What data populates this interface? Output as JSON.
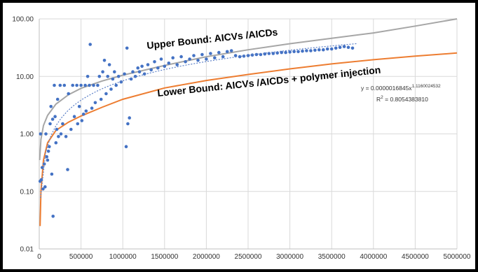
{
  "chart_data": {
    "type": "scatter",
    "title": "",
    "xlabel": "",
    "ylabel": "",
    "x_scale": "linear",
    "y_scale": "log",
    "xlim": [
      0,
      5000000
    ],
    "ylim": [
      0.01,
      100
    ],
    "grid": true,
    "x_ticks": [
      "0",
      "500000",
      "1000000",
      "1500000",
      "2000000",
      "2500000",
      "3000000",
      "3500000",
      "4000000",
      "4500000",
      "5000000"
    ],
    "y_ticks": [
      "0.01",
      "0.10",
      "1.00",
      "10.00",
      "100.00"
    ],
    "colors": {
      "points": "#4472c4",
      "trendline": "#5b7fc7",
      "upper_bound": "#a6a6a6",
      "lower_bound": "#ed7d31",
      "grid": "#d9d9d9"
    },
    "annotations": {
      "upper": "Upper Bound: AICVs /AICDs",
      "lower": "Lower Bound: AICVs /AICDs + polymer injection",
      "equation_base": "y = 0.0000016845x",
      "equation_exp": "1.1160024532",
      "r2_prefix": "R",
      "r2_sup": "2",
      "r2_value": " = 0.8054383810"
    },
    "upper_bound_curve": [
      {
        "x": 5000,
        "y": 0.35
      },
      {
        "x": 20000,
        "y": 0.8
      },
      {
        "x": 50000,
        "y": 1.4
      },
      {
        "x": 100000,
        "y": 2.1
      },
      {
        "x": 200000,
        "y": 3.3
      },
      {
        "x": 350000,
        "y": 4.8
      },
      {
        "x": 500000,
        "y": 6.2
      },
      {
        "x": 750000,
        "y": 8.3
      },
      {
        "x": 1000000,
        "y": 10.5
      },
      {
        "x": 1500000,
        "y": 15.5
      },
      {
        "x": 2000000,
        "y": 22
      },
      {
        "x": 2500000,
        "y": 29
      },
      {
        "x": 3000000,
        "y": 37
      },
      {
        "x": 3500000,
        "y": 46
      },
      {
        "x": 4000000,
        "y": 57
      },
      {
        "x": 4500000,
        "y": 75
      },
      {
        "x": 5000000,
        "y": 100
      }
    ],
    "lower_bound_curve": [
      {
        "x": 10000,
        "y": 0.025
      },
      {
        "x": 20000,
        "y": 0.1
      },
      {
        "x": 50000,
        "y": 0.35
      },
      {
        "x": 100000,
        "y": 0.7
      },
      {
        "x": 200000,
        "y": 1.15
      },
      {
        "x": 350000,
        "y": 1.6
      },
      {
        "x": 500000,
        "y": 2.05
      },
      {
        "x": 750000,
        "y": 2.9
      },
      {
        "x": 1000000,
        "y": 4.0
      },
      {
        "x": 1500000,
        "y": 6.3
      },
      {
        "x": 2000000,
        "y": 8.5
      },
      {
        "x": 2500000,
        "y": 10.8
      },
      {
        "x": 3000000,
        "y": 13.5
      },
      {
        "x": 3500000,
        "y": 16.5
      },
      {
        "x": 4000000,
        "y": 19.5
      },
      {
        "x": 4500000,
        "y": 22.5
      },
      {
        "x": 5000000,
        "y": 25.5
      }
    ],
    "trendline_equation": {
      "a": 1.6845e-06,
      "b": 1.1160024532,
      "x_min": 15000,
      "x_max": 3800000
    },
    "series": [
      {
        "points": [
          {
            "x": 10000,
            "y": 0.15
          },
          {
            "x": 15000,
            "y": 1.0
          },
          {
            "x": 25000,
            "y": 0.16
          },
          {
            "x": 35000,
            "y": 0.26
          },
          {
            "x": 45000,
            "y": 0.11
          },
          {
            "x": 60000,
            "y": 0.3
          },
          {
            "x": 70000,
            "y": 0.12
          },
          {
            "x": 80000,
            "y": 1.0
          },
          {
            "x": 90000,
            "y": 0.4
          },
          {
            "x": 100000,
            "y": 0.35
          },
          {
            "x": 110000,
            "y": 0.5
          },
          {
            "x": 120000,
            "y": 0.6
          },
          {
            "x": 130000,
            "y": 1.5
          },
          {
            "x": 140000,
            "y": 3.0
          },
          {
            "x": 150000,
            "y": 0.2
          },
          {
            "x": 160000,
            "y": 1.8
          },
          {
            "x": 165000,
            "y": 0.037
          },
          {
            "x": 180000,
            "y": 7.0
          },
          {
            "x": 190000,
            "y": 2.0
          },
          {
            "x": 200000,
            "y": 0.7
          },
          {
            "x": 210000,
            "y": 1.2
          },
          {
            "x": 220000,
            "y": 4.0
          },
          {
            "x": 230000,
            "y": 0.9
          },
          {
            "x": 250000,
            "y": 7.0
          },
          {
            "x": 260000,
            "y": 1.0
          },
          {
            "x": 280000,
            "y": 1.5
          },
          {
            "x": 300000,
            "y": 7.0
          },
          {
            "x": 320000,
            "y": 0.9
          },
          {
            "x": 340000,
            "y": 0.24
          },
          {
            "x": 350000,
            "y": 5.0
          },
          {
            "x": 380000,
            "y": 1.2
          },
          {
            "x": 400000,
            "y": 7.0
          },
          {
            "x": 420000,
            "y": 2.0
          },
          {
            "x": 450000,
            "y": 7.0
          },
          {
            "x": 460000,
            "y": 1.5
          },
          {
            "x": 480000,
            "y": 3.0
          },
          {
            "x": 500000,
            "y": 7.0
          },
          {
            "x": 510000,
            "y": 1.7
          },
          {
            "x": 530000,
            "y": 2.2
          },
          {
            "x": 550000,
            "y": 7.0
          },
          {
            "x": 560000,
            "y": 2.5
          },
          {
            "x": 580000,
            "y": 10.0
          },
          {
            "x": 600000,
            "y": 7.0
          },
          {
            "x": 610000,
            "y": 36.0
          },
          {
            "x": 630000,
            "y": 2.8
          },
          {
            "x": 650000,
            "y": 7.0
          },
          {
            "x": 670000,
            "y": 3.5
          },
          {
            "x": 700000,
            "y": 7.0
          },
          {
            "x": 720000,
            "y": 10.0
          },
          {
            "x": 740000,
            "y": 4.0
          },
          {
            "x": 760000,
            "y": 12.0
          },
          {
            "x": 780000,
            "y": 19.0
          },
          {
            "x": 800000,
            "y": 5.0
          },
          {
            "x": 820000,
            "y": 10.0
          },
          {
            "x": 840000,
            "y": 16.0
          },
          {
            "x": 860000,
            "y": 6.0
          },
          {
            "x": 880000,
            "y": 9.0
          },
          {
            "x": 900000,
            "y": 12.0
          },
          {
            "x": 920000,
            "y": 7.0
          },
          {
            "x": 950000,
            "y": 10.0
          },
          {
            "x": 980000,
            "y": 8.0
          },
          {
            "x": 1020000,
            "y": 11.0
          },
          {
            "x": 1040000,
            "y": 0.6
          },
          {
            "x": 1050000,
            "y": 31.0
          },
          {
            "x": 1060000,
            "y": 1.5
          },
          {
            "x": 1080000,
            "y": 1.9
          },
          {
            "x": 1100000,
            "y": 9.0
          },
          {
            "x": 1120000,
            "y": 12.0
          },
          {
            "x": 1150000,
            "y": 10.0
          },
          {
            "x": 1180000,
            "y": 14.0
          },
          {
            "x": 1200000,
            "y": 12.0
          },
          {
            "x": 1230000,
            "y": 15.0
          },
          {
            "x": 1260000,
            "y": 11.0
          },
          {
            "x": 1300000,
            "y": 16.0
          },
          {
            "x": 1340000,
            "y": 13.0
          },
          {
            "x": 1380000,
            "y": 18.0
          },
          {
            "x": 1420000,
            "y": 14.0
          },
          {
            "x": 1460000,
            "y": 20.0
          },
          {
            "x": 1500000,
            "y": 15.0
          },
          {
            "x": 1550000,
            "y": 17.0
          },
          {
            "x": 1600000,
            "y": 21.0
          },
          {
            "x": 1650000,
            "y": 16.0
          },
          {
            "x": 1700000,
            "y": 22.0
          },
          {
            "x": 1750000,
            "y": 18.0
          },
          {
            "x": 1800000,
            "y": 20.0
          },
          {
            "x": 1850000,
            "y": 23.0
          },
          {
            "x": 1900000,
            "y": 19.0
          },
          {
            "x": 1950000,
            "y": 24.0
          },
          {
            "x": 2000000,
            "y": 20.0
          },
          {
            "x": 2050000,
            "y": 25.0
          },
          {
            "x": 2100000,
            "y": 21.0
          },
          {
            "x": 2150000,
            "y": 26.0
          },
          {
            "x": 2200000,
            "y": 22.0
          },
          {
            "x": 2250000,
            "y": 27.0
          },
          {
            "x": 2300000,
            "y": 28.0
          },
          {
            "x": 2350000,
            "y": 23.0
          },
          {
            "x": 2400000,
            "y": 22.0
          },
          {
            "x": 2450000,
            "y": 22.5
          },
          {
            "x": 2500000,
            "y": 23.0
          },
          {
            "x": 2550000,
            "y": 23.5
          },
          {
            "x": 2600000,
            "y": 24.0
          },
          {
            "x": 2650000,
            "y": 24.0
          },
          {
            "x": 2700000,
            "y": 24.5
          },
          {
            "x": 2750000,
            "y": 25.0
          },
          {
            "x": 2800000,
            "y": 25.0
          },
          {
            "x": 2850000,
            "y": 25.5
          },
          {
            "x": 2900000,
            "y": 26.0
          },
          {
            "x": 2950000,
            "y": 26.0
          },
          {
            "x": 3000000,
            "y": 26.5
          },
          {
            "x": 3050000,
            "y": 27.0
          },
          {
            "x": 3100000,
            "y": 27.0
          },
          {
            "x": 3150000,
            "y": 27.5
          },
          {
            "x": 3200000,
            "y": 28.0
          },
          {
            "x": 3250000,
            "y": 28.0
          },
          {
            "x": 3300000,
            "y": 28.5
          },
          {
            "x": 3350000,
            "y": 29.0
          },
          {
            "x": 3400000,
            "y": 29.0
          },
          {
            "x": 3450000,
            "y": 30.0
          },
          {
            "x": 3500000,
            "y": 30.0
          },
          {
            "x": 3550000,
            "y": 31.0
          },
          {
            "x": 3600000,
            "y": 32.0
          },
          {
            "x": 3650000,
            "y": 33.0
          },
          {
            "x": 3700000,
            "y": 32.0
          },
          {
            "x": 3750000,
            "y": 31.0
          }
        ]
      }
    ]
  }
}
